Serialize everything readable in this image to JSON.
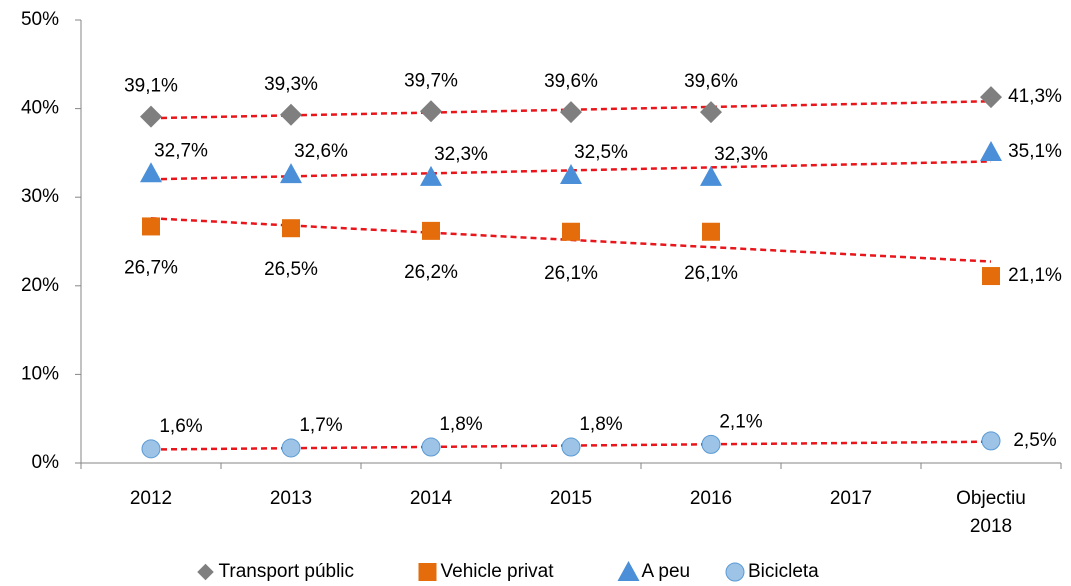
{
  "chart_data": {
    "type": "scatter",
    "categories": [
      "2012",
      "2013",
      "2014",
      "2015",
      "2016",
      "2017",
      "Objectiu 2018"
    ],
    "series": [
      {
        "name": "Transport públic",
        "color": "#7f7f7f",
        "marker": "diamond",
        "values": [
          39.1,
          39.3,
          39.7,
          39.6,
          39.6,
          null,
          41.3
        ],
        "value_labels": [
          "39,1%",
          "39,3%",
          "39,7%",
          "39,6%",
          "39,6%",
          null,
          "41,3%"
        ]
      },
      {
        "name": "Vehicle privat",
        "color": "#e46c0a",
        "marker": "square",
        "values": [
          26.7,
          26.5,
          26.2,
          26.1,
          26.1,
          null,
          21.1
        ],
        "value_labels": [
          "26,7%",
          "26,5%",
          "26,2%",
          "26,1%",
          "26,1%",
          null,
          "21,1%"
        ]
      },
      {
        "name": "A peu",
        "color": "#4a8fd8",
        "marker": "triangle",
        "values": [
          32.7,
          32.6,
          32.3,
          32.5,
          32.3,
          null,
          35.1
        ],
        "value_labels": [
          "32,7%",
          "32,6%",
          "32,3%",
          "32,5%",
          "32,3%",
          null,
          "35,1%"
        ]
      },
      {
        "name": "Bicicleta",
        "color": "#9dc3e6",
        "marker": "circle",
        "values": [
          1.6,
          1.7,
          1.8,
          1.8,
          2.1,
          null,
          2.5
        ],
        "value_labels": [
          "1,6%",
          "1,7%",
          "1,8%",
          "1,8%",
          "2,1%",
          null,
          "2,5%"
        ]
      }
    ],
    "trendline": true,
    "trendline_color": "#e8161b",
    "ylim": [
      0,
      50
    ],
    "yticks": [
      {
        "value": 0,
        "label": "0%"
      },
      {
        "value": 10,
        "label": "10%"
      },
      {
        "value": 20,
        "label": "20%"
      },
      {
        "value": 30,
        "label": "30%"
      },
      {
        "value": 40,
        "label": "40%"
      },
      {
        "value": 50,
        "label": "50%"
      }
    ],
    "legend": "bottom"
  }
}
